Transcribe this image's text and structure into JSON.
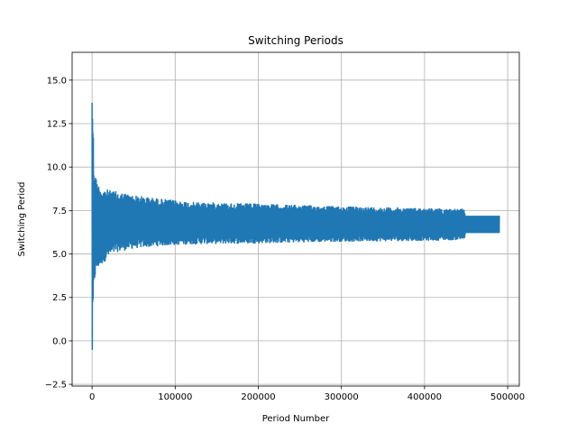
{
  "chart_data": {
    "type": "line",
    "title": "Switching Periods",
    "xlabel": "Period Number",
    "ylabel": "Switching Period",
    "xlim": [
      -24000,
      514000
    ],
    "ylim": [
      -2.6,
      16.6
    ],
    "xticks": [
      0,
      100000,
      200000,
      300000,
      400000,
      500000
    ],
    "xtick_labels": [
      "0",
      "100000",
      "200000",
      "300000",
      "400000",
      "500000"
    ],
    "yticks": [
      -2.5,
      0.0,
      2.5,
      5.0,
      7.5,
      10.0,
      12.5,
      15.0
    ],
    "ytick_labels": [
      "−2.5",
      "0.0",
      "2.5",
      "5.0",
      "7.5",
      "10.0",
      "12.5",
      "15.0"
    ],
    "grid": true,
    "series_color": "#1f77b4",
    "envelope": {
      "x": [
        0,
        500,
        1000,
        2000,
        3000,
        5000,
        8000,
        12000,
        20000,
        30000,
        50000,
        80000,
        120000,
        200000,
        300000,
        400000,
        448000,
        449000,
        490000
      ],
      "y_max": [
        15.7,
        14.5,
        13.5,
        10.5,
        9.8,
        9.4,
        9.0,
        8.8,
        8.7,
        8.6,
        8.4,
        8.2,
        8.0,
        7.9,
        7.75,
        7.65,
        7.6,
        7.2,
        7.2
      ],
      "y_min": [
        -1.8,
        -1.0,
        0.5,
        2.6,
        3.4,
        3.9,
        4.2,
        4.4,
        4.8,
        5.1,
        5.3,
        5.45,
        5.55,
        5.6,
        5.7,
        5.75,
        5.8,
        6.2,
        6.2
      ]
    },
    "noise_amplitude": 0.35
  }
}
